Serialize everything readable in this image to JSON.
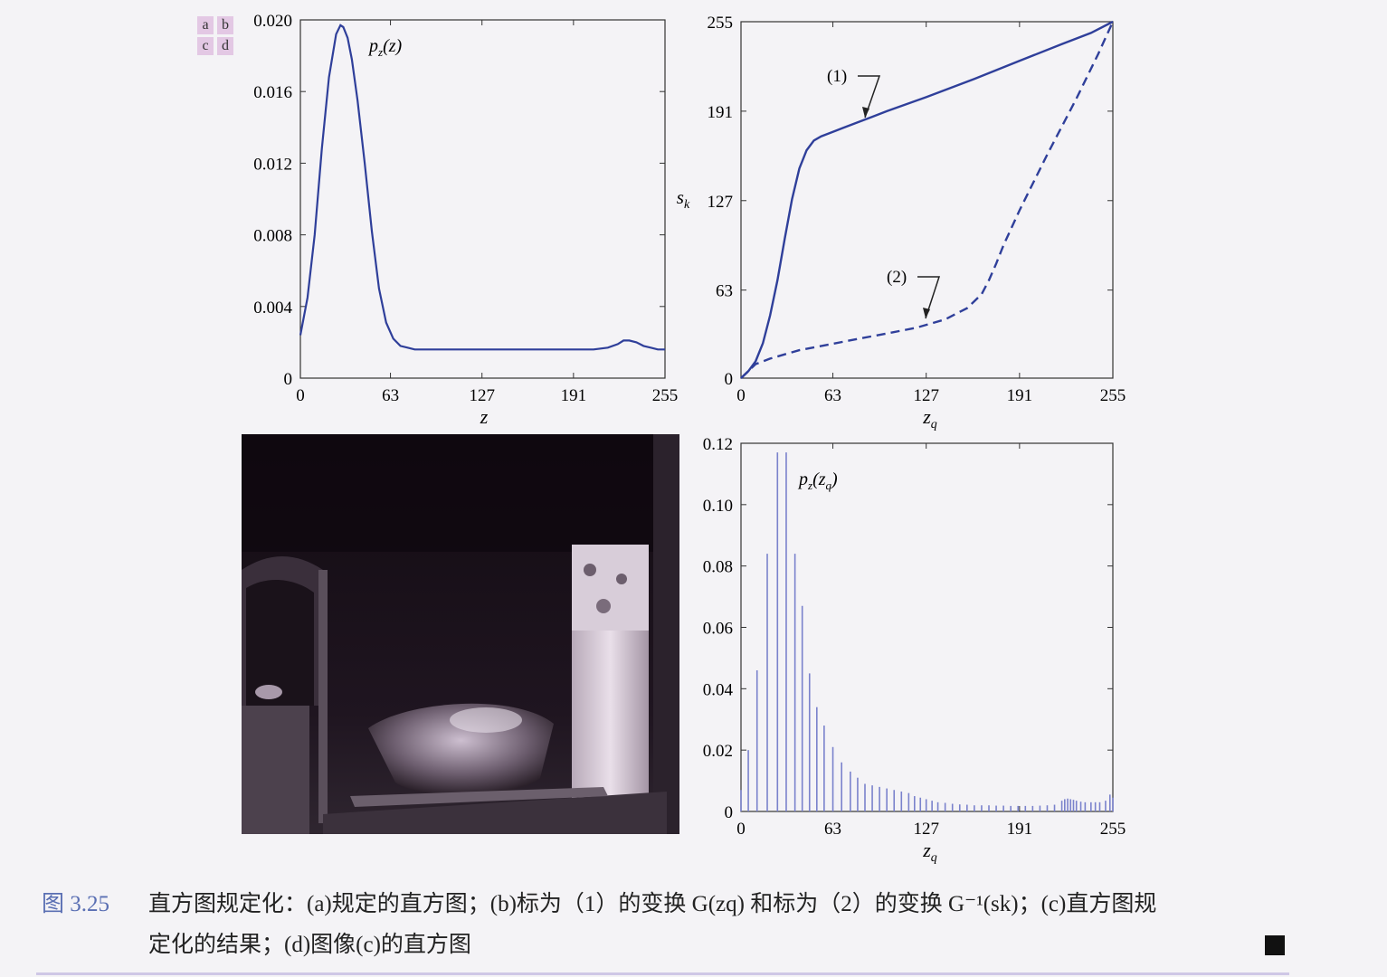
{
  "panel_letters": [
    "a",
    "b",
    "c",
    "d"
  ],
  "caption": {
    "figure_number": "图 3.25",
    "line1": "直方图规定化：(a)规定的直方图；(b)标为（1）的变换 G(zq) 和标为（2）的变换 G⁻¹(sk)；(c)直方图规",
    "line2": "定化的结果；(d)图像(c)的直方图"
  },
  "chart_data": [
    {
      "type": "line",
      "panel": "a",
      "annotation": "pz(z)",
      "xlabel": "z",
      "ylabel": "",
      "xlim": [
        0,
        255
      ],
      "ylim": [
        0,
        0.02
      ],
      "xticks": [
        "0",
        "63",
        "127",
        "191",
        "255"
      ],
      "yticks": [
        "0",
        "0.004",
        "0.008",
        "0.012",
        "0.016",
        "0.020"
      ],
      "series": [
        {
          "x": [
            0,
            5,
            10,
            15,
            20,
            25,
            28,
            30,
            33,
            36,
            40,
            45,
            50,
            55,
            60,
            65,
            70,
            75,
            80,
            90,
            100,
            127,
            160,
            191,
            205,
            215,
            222,
            226,
            230,
            235,
            240,
            245,
            250,
            255
          ],
          "y": [
            0.0024,
            0.0045,
            0.008,
            0.0128,
            0.0168,
            0.0192,
            0.0197,
            0.0196,
            0.019,
            0.0178,
            0.0155,
            0.012,
            0.0082,
            0.005,
            0.0031,
            0.0022,
            0.0018,
            0.0017,
            0.0016,
            0.0016,
            0.0016,
            0.0016,
            0.0016,
            0.0016,
            0.0016,
            0.0017,
            0.0019,
            0.0021,
            0.0021,
            0.002,
            0.0018,
            0.0017,
            0.0016,
            0.0016
          ]
        }
      ]
    },
    {
      "type": "line",
      "panel": "b",
      "xlabel": "zq",
      "ylabel": "sk",
      "xlim": [
        0,
        255
      ],
      "ylim": [
        0,
        255
      ],
      "xticks": [
        "0",
        "63",
        "127",
        "191",
        "255"
      ],
      "yticks": [
        "0",
        "63",
        "127",
        "191",
        "255"
      ],
      "annotations": [
        "(1)",
        "(2)"
      ],
      "series": [
        {
          "name": "(1)",
          "style": "solid",
          "x": [
            0,
            5,
            10,
            15,
            20,
            25,
            30,
            35,
            40,
            45,
            50,
            55,
            60,
            65,
            70,
            80,
            90,
            100,
            127,
            160,
            191,
            220,
            240,
            255
          ],
          "y": [
            0,
            5,
            12,
            25,
            45,
            70,
            100,
            128,
            150,
            163,
            170,
            173,
            175,
            177,
            179,
            183,
            187,
            191,
            201,
            214,
            227,
            239,
            247,
            255
          ]
        },
        {
          "name": "(2)",
          "style": "dashed",
          "x": [
            0,
            5,
            10,
            15,
            20,
            30,
            40,
            60,
            80,
            100,
            120,
            140,
            155,
            165,
            170,
            175,
            180,
            191,
            210,
            230,
            245,
            255
          ],
          "y": [
            0,
            5,
            10,
            12,
            14,
            17,
            20,
            24,
            28,
            32,
            36,
            42,
            50,
            60,
            70,
            82,
            95,
            120,
            160,
            200,
            232,
            255
          ]
        }
      ]
    },
    {
      "type": "bar",
      "panel": "d",
      "annotation": "pz(zq)",
      "xlabel": "zq",
      "ylabel": "",
      "xlim": [
        0,
        255
      ],
      "ylim": [
        0,
        0.12
      ],
      "xticks": [
        "0",
        "63",
        "127",
        "191",
        "255"
      ],
      "yticks": [
        "0",
        "0.02",
        "0.04",
        "0.06",
        "0.08",
        "0.10",
        "0.12"
      ],
      "x": [
        0,
        5,
        11,
        18,
        25,
        31,
        37,
        42,
        47,
        52,
        57,
        63,
        69,
        75,
        80,
        85,
        90,
        95,
        100,
        105,
        110,
        115,
        119,
        123,
        127,
        131,
        135,
        140,
        145,
        150,
        155,
        160,
        165,
        170,
        175,
        180,
        185,
        190,
        195,
        200,
        205,
        210,
        215,
        220,
        222,
        224,
        226,
        228,
        230,
        233,
        236,
        240,
        243,
        246,
        250,
        253,
        255
      ],
      "values": [
        0.007,
        0.02,
        0.046,
        0.084,
        0.117,
        0.117,
        0.084,
        0.067,
        0.045,
        0.034,
        0.028,
        0.021,
        0.016,
        0.013,
        0.011,
        0.009,
        0.0085,
        0.008,
        0.0075,
        0.007,
        0.0065,
        0.006,
        0.005,
        0.0045,
        0.004,
        0.0035,
        0.003,
        0.0028,
        0.0025,
        0.0023,
        0.0022,
        0.002,
        0.002,
        0.002,
        0.0019,
        0.0019,
        0.0018,
        0.0018,
        0.0018,
        0.0018,
        0.0019,
        0.002,
        0.0022,
        0.0035,
        0.004,
        0.0042,
        0.004,
        0.0038,
        0.0035,
        0.0032,
        0.003,
        0.003,
        0.003,
        0.003,
        0.0035,
        0.0055,
        0.0045
      ]
    }
  ],
  "colors": {
    "curve": "#2f3f9a",
    "bars": "#7a82cc",
    "figure_number": "#5a6fb3"
  }
}
